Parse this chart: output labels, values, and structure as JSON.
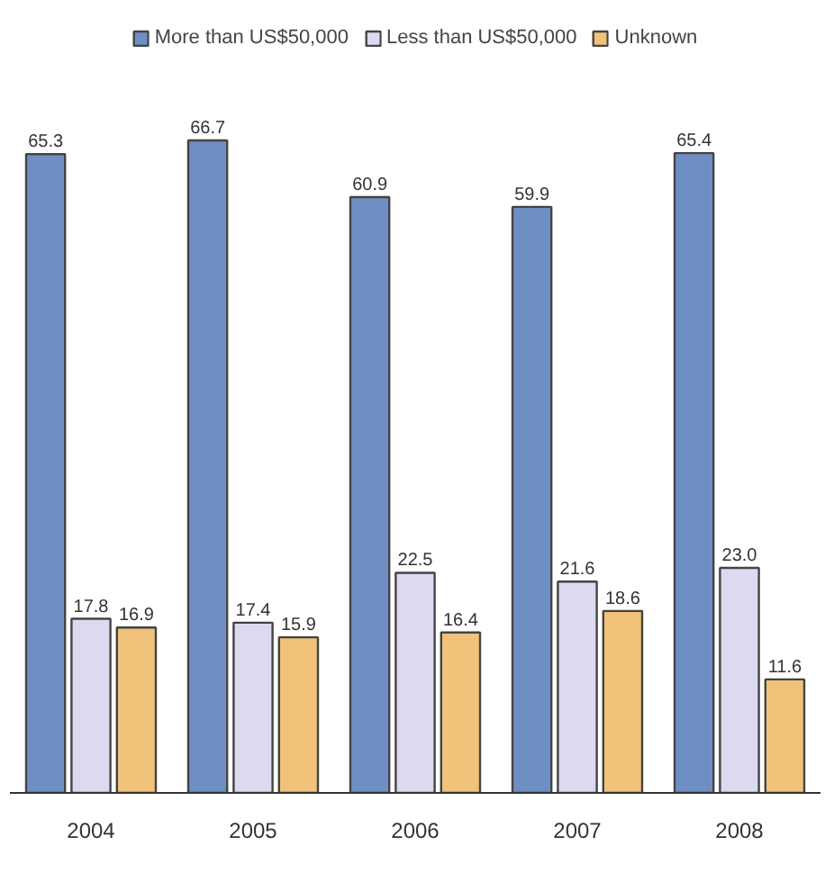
{
  "chart_data": {
    "type": "bar",
    "categories": [
      "2004",
      "2005",
      "2006",
      "2007",
      "2008"
    ],
    "series": [
      {
        "name": "More than US$50,000",
        "color": "#6f8fc4",
        "values": [
          65.3,
          66.7,
          60.9,
          59.9,
          65.4
        ],
        "value_labels": [
          "65.3",
          "66.7",
          "60.9",
          "59.9",
          "65.4"
        ]
      },
      {
        "name": "Less than US$50,000",
        "color": "#dcdaf0",
        "values": [
          17.8,
          17.4,
          22.5,
          21.6,
          23.0
        ],
        "value_labels": [
          "17.8",
          "17.4",
          "22.5",
          "21.6",
          "23.0"
        ]
      },
      {
        "name": "Unknown",
        "color": "#f0c27a",
        "values": [
          16.9,
          15.9,
          16.4,
          18.6,
          11.6
        ],
        "value_labels": [
          "16.9",
          "15.9",
          "16.4",
          "18.6",
          "11.6"
        ]
      }
    ],
    "tick_labels": "x",
    "legend": "top"
  }
}
